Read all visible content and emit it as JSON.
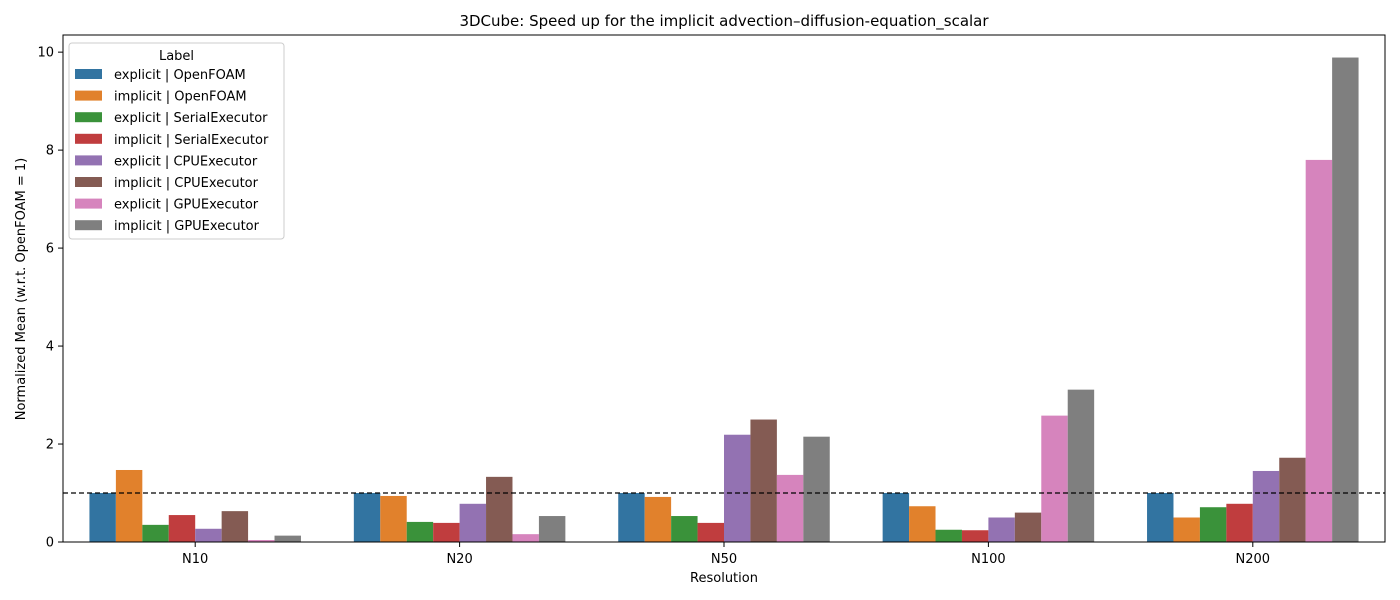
{
  "chart_data": {
    "type": "bar",
    "title": "3DCube: Speed up for the implicit advection–diffusion-equation_scalar",
    "xlabel": "Resolution",
    "ylabel": "Normalized Mean (w.r.t. OpenFOAM = 1)",
    "ylim": [
      0,
      10.35
    ],
    "yticks": [
      0,
      2,
      4,
      6,
      8,
      10
    ],
    "categories": [
      "N10",
      "N20",
      "N50",
      "N100",
      "N200"
    ],
    "reference_line": {
      "value": 1,
      "style": "dashed"
    },
    "legend": {
      "title": "Label",
      "placement": "upper-left"
    },
    "grid": false,
    "series": [
      {
        "name": "explicit | OpenFOAM",
        "color": "#3274a1",
        "values": [
          1.0,
          1.0,
          1.0,
          1.0,
          1.0
        ]
      },
      {
        "name": "implicit | OpenFOAM",
        "color": "#e1812c",
        "values": [
          1.47,
          0.94,
          0.92,
          0.73,
          0.5
        ]
      },
      {
        "name": "explicit | SerialExecutor",
        "color": "#3a923a",
        "values": [
          0.35,
          0.41,
          0.53,
          0.25,
          0.71
        ]
      },
      {
        "name": "implicit | SerialExecutor",
        "color": "#c03d3e",
        "values": [
          0.55,
          0.39,
          0.39,
          0.24,
          0.78
        ]
      },
      {
        "name": "explicit | CPUExecutor",
        "color": "#9372b2",
        "values": [
          0.27,
          0.78,
          2.19,
          0.5,
          1.45
        ]
      },
      {
        "name": "implicit | CPUExecutor",
        "color": "#845b53",
        "values": [
          0.63,
          1.33,
          2.5,
          0.6,
          1.72
        ]
      },
      {
        "name": "explicit | GPUExecutor",
        "color": "#d684bd",
        "values": [
          0.04,
          0.16,
          1.37,
          2.58,
          7.8
        ]
      },
      {
        "name": "implicit | GPUExecutor",
        "color": "#7f7f7f",
        "values": [
          0.13,
          0.53,
          2.15,
          3.11,
          9.89
        ]
      }
    ]
  }
}
